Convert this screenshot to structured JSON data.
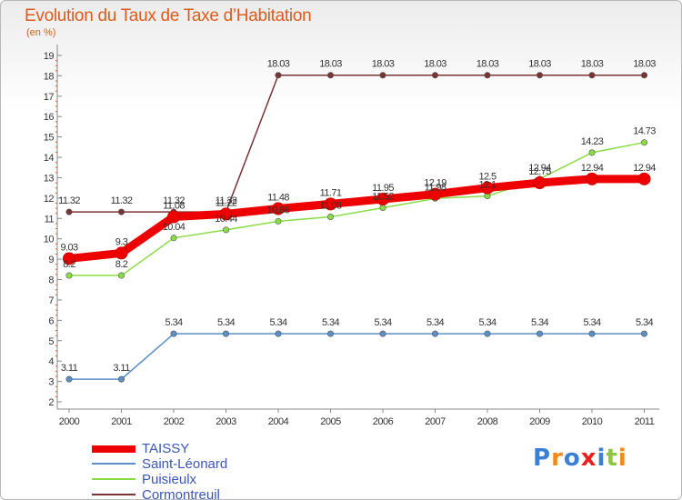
{
  "title": "Evolution du Taux de Taxe d’Habitation",
  "unit": "(en %)",
  "logo": "Proxiti",
  "chart_data": {
    "type": "line",
    "title": "Evolution du Taux de Taxe d’Habitation",
    "subtitle": "(en %)",
    "x": [
      "2000",
      "2001",
      "2002",
      "2003",
      "2004",
      "2005",
      "2006",
      "2007",
      "2008",
      "2009",
      "2010",
      "2011"
    ],
    "ylim": [
      2,
      19
    ],
    "yticks": [
      2,
      3,
      4,
      5,
      6,
      7,
      8,
      9,
      10,
      11,
      12,
      13,
      14,
      15,
      16,
      17,
      18,
      19
    ],
    "grid": false,
    "legend_position": "bottom-left",
    "series": [
      {
        "name": "TAISSY",
        "color": "#ee0000",
        "values": [
          9.03,
          9.3,
          11.08,
          11.22,
          11.48,
          11.71,
          11.95,
          12.19,
          12.5,
          12.75,
          12.94,
          12.94
        ]
      },
      {
        "name": "Saint-Léonard",
        "color": "#5b8fc7",
        "values": [
          3.11,
          3.11,
          5.34,
          5.34,
          5.34,
          5.34,
          5.34,
          5.34,
          5.34,
          5.34,
          5.34,
          5.34
        ]
      },
      {
        "name": "Puisieulx",
        "color": "#88dd44",
        "values": [
          8.2,
          8.2,
          10.04,
          10.44,
          10.86,
          11.08,
          11.52,
          11.98,
          12.1,
          12.94,
          14.23,
          14.73
        ]
      },
      {
        "name": "Cormontreuil",
        "color": "#7a3333",
        "values": [
          11.32,
          11.32,
          11.32,
          11.32,
          18.03,
          18.03,
          18.03,
          18.03,
          18.03,
          18.03,
          18.03,
          18.03
        ]
      }
    ]
  }
}
